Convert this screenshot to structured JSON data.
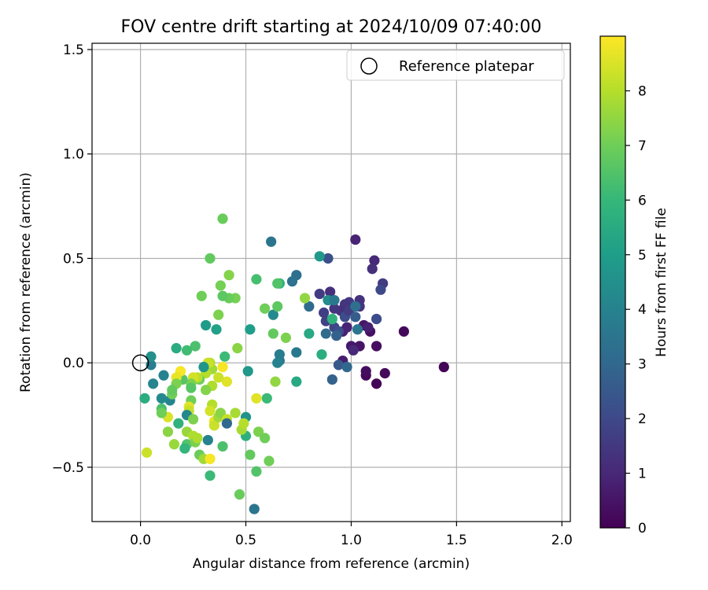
{
  "chart_data": {
    "type": "scatter",
    "title": "FOV centre drift starting at 2024/10/09 07:40:00",
    "xlabel": "Angular distance from reference (arcmin)",
    "ylabel": "Rotation from reference (arcmin)",
    "xlim": [
      -0.23,
      2.04
    ],
    "ylim": [
      -0.76,
      1.53
    ],
    "xticks": [
      0.0,
      0.5,
      1.0,
      1.5,
      2.0
    ],
    "xtick_labels": [
      "0.0",
      "0.5",
      "1.0",
      "1.5",
      "2.0"
    ],
    "yticks": [
      -0.5,
      0.0,
      0.5,
      1.0,
      1.5
    ],
    "ytick_labels": [
      "−0.5",
      "0.0",
      "0.5",
      "1.0",
      "1.5"
    ],
    "grid": true,
    "legend": {
      "placement": "top-right",
      "entries": [
        "Reference platepar"
      ]
    },
    "reference_point": {
      "x": 0.0,
      "y": 0.0,
      "label": "Reference platepar"
    },
    "colorbar": {
      "label": "Hours from first FF file",
      "min": 0,
      "max": 9,
      "ticks": [
        0,
        1,
        2,
        3,
        4,
        5,
        6,
        7,
        8
      ],
      "colormap": "viridis",
      "colors": [
        "#440154",
        "#482878",
        "#3e4989",
        "#31688e",
        "#26828e",
        "#1f9e89",
        "#35b779",
        "#6ece58",
        "#b5de2b",
        "#fde725"
      ]
    },
    "points": [
      {
        "x": 1.44,
        "y": -0.02,
        "h": 0.1
      },
      {
        "x": 1.25,
        "y": 0.15,
        "h": 0.2
      },
      {
        "x": 1.16,
        "y": -0.05,
        "h": 0.2
      },
      {
        "x": 1.12,
        "y": -0.1,
        "h": 0.1
      },
      {
        "x": 1.07,
        "y": -0.06,
        "h": 0.2
      },
      {
        "x": 1.07,
        "y": -0.04,
        "h": 0.3
      },
      {
        "x": 1.12,
        "y": 0.08,
        "h": 0.3
      },
      {
        "x": 1.09,
        "y": 0.15,
        "h": 0.4
      },
      {
        "x": 1.06,
        "y": 0.18,
        "h": 0.5
      },
      {
        "x": 1.04,
        "y": 0.08,
        "h": 0.5
      },
      {
        "x": 1.0,
        "y": 0.08,
        "h": 0.6
      },
      {
        "x": 0.96,
        "y": 0.01,
        "h": 0.7
      },
      {
        "x": 0.96,
        "y": 0.15,
        "h": 0.8
      },
      {
        "x": 0.98,
        "y": 0.17,
        "h": 0.9
      },
      {
        "x": 1.01,
        "y": 0.06,
        "h": 1.0
      },
      {
        "x": 1.08,
        "y": 0.17,
        "h": 0.8
      },
      {
        "x": 1.11,
        "y": 0.49,
        "h": 1.0
      },
      {
        "x": 1.02,
        "y": 0.59,
        "h": 0.9
      },
      {
        "x": 1.1,
        "y": 0.45,
        "h": 1.2
      },
      {
        "x": 1.15,
        "y": 0.38,
        "h": 1.6
      },
      {
        "x": 1.14,
        "y": 0.35,
        "h": 2.0
      },
      {
        "x": 1.12,
        "y": 0.21,
        "h": 2.1
      },
      {
        "x": 1.04,
        "y": 0.3,
        "h": 1.3
      },
      {
        "x": 1.04,
        "y": 0.27,
        "h": 1.4
      },
      {
        "x": 0.99,
        "y": 0.29,
        "h": 1.5
      },
      {
        "x": 0.97,
        "y": 0.28,
        "h": 1.4
      },
      {
        "x": 0.95,
        "y": 0.25,
        "h": 1.3
      },
      {
        "x": 0.92,
        "y": 0.26,
        "h": 1.4
      },
      {
        "x": 0.9,
        "y": 0.34,
        "h": 1.2
      },
      {
        "x": 0.85,
        "y": 0.33,
        "h": 1.6
      },
      {
        "x": 0.87,
        "y": 0.24,
        "h": 1.7
      },
      {
        "x": 0.88,
        "y": 0.2,
        "h": 1.8
      },
      {
        "x": 0.92,
        "y": 0.17,
        "h": 1.9
      },
      {
        "x": 0.94,
        "y": 0.15,
        "h": 2.2
      },
      {
        "x": 0.97,
        "y": 0.22,
        "h": 2.1
      },
      {
        "x": 0.99,
        "y": 0.25,
        "h": 1.6
      },
      {
        "x": 1.02,
        "y": 0.22,
        "h": 2.6
      },
      {
        "x": 1.02,
        "y": 0.27,
        "h": 3.3
      },
      {
        "x": 1.03,
        "y": 0.16,
        "h": 3.5
      },
      {
        "x": 0.94,
        "y": -0.01,
        "h": 2.5
      },
      {
        "x": 0.98,
        "y": -0.02,
        "h": 3.0
      },
      {
        "x": 0.91,
        "y": -0.08,
        "h": 2.8
      },
      {
        "x": 0.93,
        "y": 0.13,
        "h": 2.8
      },
      {
        "x": 0.88,
        "y": 0.14,
        "h": 3.1
      },
      {
        "x": 0.89,
        "y": 0.3,
        "h": 4.4
      },
      {
        "x": 0.92,
        "y": 0.3,
        "h": 3.6
      },
      {
        "x": 0.89,
        "y": 0.5,
        "h": 2.2
      },
      {
        "x": 0.85,
        "y": 0.51,
        "h": 4.8
      },
      {
        "x": 0.8,
        "y": 0.27,
        "h": 3.1
      },
      {
        "x": 0.74,
        "y": 0.42,
        "h": 3.3
      },
      {
        "x": 0.72,
        "y": 0.39,
        "h": 3.4
      },
      {
        "x": 0.74,
        "y": 0.05,
        "h": 3.6
      },
      {
        "x": 0.74,
        "y": -0.09,
        "h": 5.4
      },
      {
        "x": 0.8,
        "y": 0.14,
        "h": 5.4
      },
      {
        "x": 0.86,
        "y": 0.04,
        "h": 5.6
      },
      {
        "x": 0.91,
        "y": 0.21,
        "h": 5.8
      },
      {
        "x": 0.66,
        "y": 0.38,
        "h": 5.6
      },
      {
        "x": 0.62,
        "y": 0.58,
        "h": 3.5
      },
      {
        "x": 0.63,
        "y": 0.23,
        "h": 4.3
      },
      {
        "x": 0.66,
        "y": 0.01,
        "h": 3.6
      },
      {
        "x": 0.66,
        "y": 0.04,
        "h": 3.8
      },
      {
        "x": 0.65,
        "y": 0.0,
        "h": 4.0
      },
      {
        "x": 0.65,
        "y": 0.38,
        "h": 6.5
      },
      {
        "x": 0.65,
        "y": 0.27,
        "h": 6.7
      },
      {
        "x": 0.59,
        "y": 0.26,
        "h": 7.0
      },
      {
        "x": 0.63,
        "y": 0.14,
        "h": 6.8
      },
      {
        "x": 0.69,
        "y": 0.12,
        "h": 7.2
      },
      {
        "x": 0.78,
        "y": 0.31,
        "h": 7.5
      },
      {
        "x": 0.55,
        "y": 0.4,
        "h": 6.3
      },
      {
        "x": 0.52,
        "y": 0.16,
        "h": 5.0
      },
      {
        "x": 0.51,
        "y": -0.04,
        "h": 4.8
      },
      {
        "x": 0.6,
        "y": -0.17,
        "h": 6.1
      },
      {
        "x": 0.64,
        "y": -0.09,
        "h": 7.5
      },
      {
        "x": 0.54,
        "y": -0.7,
        "h": 3.5
      },
      {
        "x": 0.5,
        "y": -0.26,
        "h": 4.6
      },
      {
        "x": 0.5,
        "y": -0.35,
        "h": 5.7
      },
      {
        "x": 0.48,
        "y": -0.32,
        "h": 7.8
      },
      {
        "x": 0.49,
        "y": -0.29,
        "h": 8.0
      },
      {
        "x": 0.56,
        "y": -0.33,
        "h": 7.2
      },
      {
        "x": 0.59,
        "y": -0.36,
        "h": 7.0
      },
      {
        "x": 0.61,
        "y": -0.47,
        "h": 7.0
      },
      {
        "x": 0.52,
        "y": -0.44,
        "h": 6.8
      },
      {
        "x": 0.55,
        "y": -0.52,
        "h": 6.5
      },
      {
        "x": 0.47,
        "y": -0.63,
        "h": 6.9
      },
      {
        "x": 0.55,
        "y": -0.17,
        "h": 8.6
      },
      {
        "x": 0.46,
        "y": 0.07,
        "h": 7.4
      },
      {
        "x": 0.45,
        "y": 0.31,
        "h": 7.1
      },
      {
        "x": 0.42,
        "y": 0.31,
        "h": 6.9
      },
      {
        "x": 0.42,
        "y": 0.42,
        "h": 7.3
      },
      {
        "x": 0.38,
        "y": 0.37,
        "h": 7.1
      },
      {
        "x": 0.39,
        "y": 0.32,
        "h": 6.7
      },
      {
        "x": 0.39,
        "y": 0.69,
        "h": 6.9
      },
      {
        "x": 0.33,
        "y": 0.5,
        "h": 6.8
      },
      {
        "x": 0.37,
        "y": 0.23,
        "h": 7.2
      },
      {
        "x": 0.36,
        "y": 0.16,
        "h": 5.1
      },
      {
        "x": 0.31,
        "y": 0.18,
        "h": 4.9
      },
      {
        "x": 0.29,
        "y": 0.32,
        "h": 7.0
      },
      {
        "x": 0.26,
        "y": 0.08,
        "h": 6.4
      },
      {
        "x": 0.22,
        "y": 0.06,
        "h": 6.2
      },
      {
        "x": 0.17,
        "y": 0.07,
        "h": 5.5
      },
      {
        "x": 0.4,
        "y": 0.03,
        "h": 6.1
      },
      {
        "x": 0.39,
        "y": -0.02,
        "h": 8.9
      },
      {
        "x": 0.41,
        "y": -0.09,
        "h": 8.6
      },
      {
        "x": 0.37,
        "y": -0.07,
        "h": 8.3
      },
      {
        "x": 0.34,
        "y": -0.11,
        "h": 7.9
      },
      {
        "x": 0.34,
        "y": -0.03,
        "h": 7.7
      },
      {
        "x": 0.33,
        "y": 0.0,
        "h": 8.0
      },
      {
        "x": 0.32,
        "y": 0.0,
        "h": 8.3
      },
      {
        "x": 0.31,
        "y": -0.05,
        "h": 8.0
      },
      {
        "x": 0.3,
        "y": -0.02,
        "h": 4.7
      },
      {
        "x": 0.31,
        "y": -0.13,
        "h": 7.3
      },
      {
        "x": 0.28,
        "y": -0.08,
        "h": 7.0
      },
      {
        "x": 0.27,
        "y": -0.07,
        "h": 8.1
      },
      {
        "x": 0.25,
        "y": -0.07,
        "h": 8.4
      },
      {
        "x": 0.24,
        "y": -0.1,
        "h": 7.2
      },
      {
        "x": 0.24,
        "y": -0.12,
        "h": 6.6
      },
      {
        "x": 0.24,
        "y": -0.18,
        "h": 7.0
      },
      {
        "x": 0.23,
        "y": -0.21,
        "h": 8.6
      },
      {
        "x": 0.23,
        "y": -0.23,
        "h": 8.2
      },
      {
        "x": 0.22,
        "y": -0.25,
        "h": 4.2
      },
      {
        "x": 0.25,
        "y": -0.27,
        "h": 7.2
      },
      {
        "x": 0.2,
        "y": -0.08,
        "h": 6.6
      },
      {
        "x": 0.19,
        "y": -0.04,
        "h": 8.9
      },
      {
        "x": 0.17,
        "y": -0.07,
        "h": 8.7
      },
      {
        "x": 0.17,
        "y": -0.1,
        "h": 7.2
      },
      {
        "x": 0.18,
        "y": -0.29,
        "h": 5.8
      },
      {
        "x": 0.14,
        "y": -0.18,
        "h": 4.1
      },
      {
        "x": 0.15,
        "y": -0.15,
        "h": 7.0
      },
      {
        "x": 0.15,
        "y": -0.13,
        "h": 6.8
      },
      {
        "x": 0.13,
        "y": -0.26,
        "h": 8.5
      },
      {
        "x": 0.13,
        "y": -0.33,
        "h": 7.4
      },
      {
        "x": 0.16,
        "y": -0.39,
        "h": 7.6
      },
      {
        "x": 0.11,
        "y": -0.06,
        "h": 4.0
      },
      {
        "x": 0.1,
        "y": -0.17,
        "h": 4.3
      },
      {
        "x": 0.1,
        "y": -0.22,
        "h": 6.4
      },
      {
        "x": 0.1,
        "y": -0.24,
        "h": 7.0
      },
      {
        "x": 0.06,
        "y": -0.1,
        "h": 4.1
      },
      {
        "x": 0.05,
        "y": -0.01,
        "h": 3.8
      },
      {
        "x": 0.05,
        "y": 0.03,
        "h": 4.5
      },
      {
        "x": 0.02,
        "y": -0.17,
        "h": 5.6
      },
      {
        "x": 0.03,
        "y": -0.43,
        "h": 8.3
      },
      {
        "x": 0.22,
        "y": -0.33,
        "h": 7.6
      },
      {
        "x": 0.22,
        "y": -0.39,
        "h": 6.5
      },
      {
        "x": 0.21,
        "y": -0.41,
        "h": 5.9
      },
      {
        "x": 0.25,
        "y": -0.35,
        "h": 7.9
      },
      {
        "x": 0.26,
        "y": -0.38,
        "h": 7.2
      },
      {
        "x": 0.27,
        "y": -0.36,
        "h": 7.9
      },
      {
        "x": 0.28,
        "y": -0.44,
        "h": 6.9
      },
      {
        "x": 0.3,
        "y": -0.46,
        "h": 7.7
      },
      {
        "x": 0.33,
        "y": -0.46,
        "h": 8.9
      },
      {
        "x": 0.32,
        "y": -0.37,
        "h": 4.0
      },
      {
        "x": 0.33,
        "y": -0.54,
        "h": 6.1
      },
      {
        "x": 0.34,
        "y": -0.2,
        "h": 8.0
      },
      {
        "x": 0.33,
        "y": -0.23,
        "h": 8.4
      },
      {
        "x": 0.35,
        "y": -0.28,
        "h": 8.7
      },
      {
        "x": 0.35,
        "y": -0.3,
        "h": 8.3
      },
      {
        "x": 0.37,
        "y": -0.26,
        "h": 7.7
      },
      {
        "x": 0.38,
        "y": -0.24,
        "h": 7.4
      },
      {
        "x": 0.39,
        "y": -0.4,
        "h": 6.4
      },
      {
        "x": 0.41,
        "y": -0.27,
        "h": 8.2
      },
      {
        "x": 0.41,
        "y": -0.29,
        "h": 3.0
      },
      {
        "x": 0.45,
        "y": -0.24,
        "h": 7.8
      }
    ]
  }
}
